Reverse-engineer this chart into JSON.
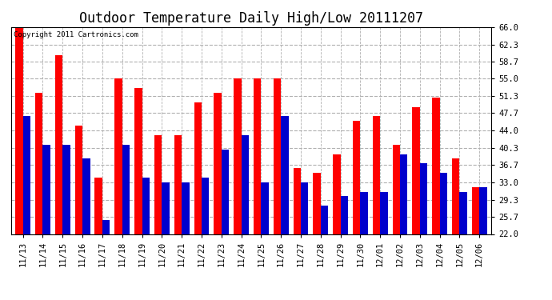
{
  "title": "Outdoor Temperature Daily High/Low 20111207",
  "copyright_text": "Copyright 2011 Cartronics.com",
  "yticks": [
    22.0,
    25.7,
    29.3,
    33.0,
    36.7,
    40.3,
    44.0,
    47.7,
    51.3,
    55.0,
    58.7,
    62.3,
    66.0
  ],
  "ylim": [
    22.0,
    66.0
  ],
  "dates": [
    "11/13",
    "11/14",
    "11/15",
    "11/16",
    "11/17",
    "11/18",
    "11/19",
    "11/20",
    "11/21",
    "11/22",
    "11/23",
    "11/24",
    "11/25",
    "11/26",
    "11/27",
    "11/28",
    "11/29",
    "11/30",
    "12/01",
    "12/02",
    "12/03",
    "12/04",
    "12/05",
    "12/06"
  ],
  "highs": [
    66.0,
    52.0,
    60.0,
    45.0,
    34.0,
    55.0,
    53.0,
    43.0,
    43.0,
    50.0,
    52.0,
    55.0,
    55.0,
    55.0,
    36.0,
    35.0,
    39.0,
    46.0,
    47.0,
    41.0,
    49.0,
    51.0,
    38.0,
    32.0
  ],
  "lows": [
    47.0,
    41.0,
    41.0,
    38.0,
    25.0,
    41.0,
    34.0,
    33.0,
    33.0,
    34.0,
    40.0,
    43.0,
    33.0,
    47.0,
    33.0,
    28.0,
    30.0,
    31.0,
    31.0,
    39.0,
    37.0,
    35.0,
    31.0,
    32.0
  ],
  "high_color": "#ff0000",
  "low_color": "#0000cc",
  "bg_color": "#ffffff",
  "grid_color": "#b0b0b0",
  "title_fontsize": 12,
  "tick_fontsize": 7.5,
  "bar_width": 0.38
}
